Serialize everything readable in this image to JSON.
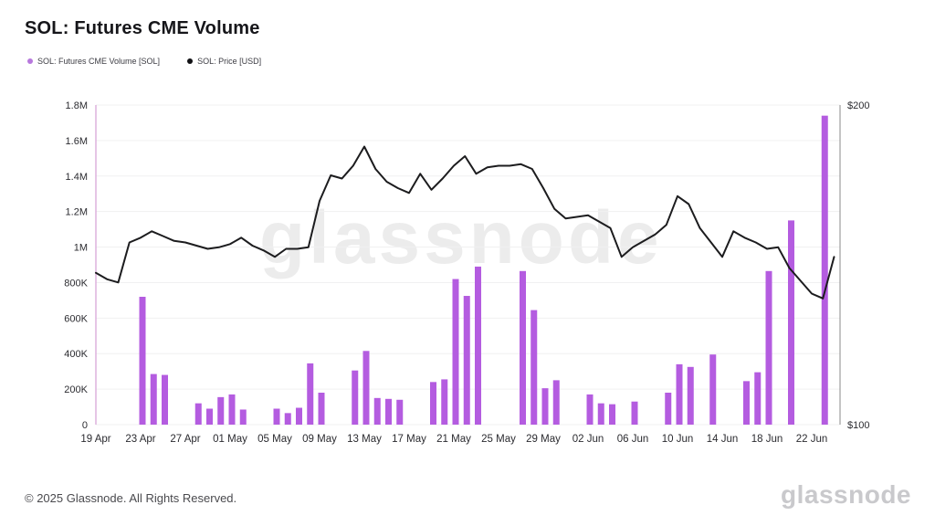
{
  "header": {
    "title": "SOL: Futures CME Volume"
  },
  "legend": {
    "items": [
      {
        "label": "SOL: Futures CME Volume [SOL]",
        "color": "#b778dd"
      },
      {
        "label": "SOL: Price [USD]",
        "color": "#111114"
      }
    ]
  },
  "watermark": "glassnode",
  "footer": {
    "copyright": "© 2025 Glassnode. All Rights Reserved.",
    "logo": "glassnode"
  },
  "colors": {
    "volume_bar": "#b45ce0",
    "price_line": "#1c1c1e",
    "left_axis_line": "#d9a6d9",
    "right_axis_line": "#8a8a8a",
    "gridline": "#f0f0f1",
    "tick_text": "#2b2b30"
  },
  "chart_data": {
    "type": "bar",
    "note": "combo chart: bars = futures volume (left axis), line = price (right axis)",
    "x": [
      "19 Apr",
      "20 Apr",
      "21 Apr",
      "22 Apr",
      "23 Apr",
      "24 Apr",
      "25 Apr",
      "26 Apr",
      "27 Apr",
      "28 Apr",
      "29 Apr",
      "30 Apr",
      "01 May",
      "02 May",
      "03 May",
      "04 May",
      "05 May",
      "06 May",
      "07 May",
      "08 May",
      "09 May",
      "10 May",
      "11 May",
      "12 May",
      "13 May",
      "14 May",
      "15 May",
      "16 May",
      "17 May",
      "18 May",
      "19 May",
      "20 May",
      "21 May",
      "22 May",
      "23 May",
      "24 May",
      "25 May",
      "26 May",
      "27 May",
      "28 May",
      "29 May",
      "30 May",
      "31 May",
      "01 Jun",
      "02 Jun",
      "03 Jun",
      "04 Jun",
      "05 Jun",
      "06 Jun",
      "07 Jun",
      "08 Jun",
      "09 Jun",
      "10 Jun",
      "11 Jun",
      "12 Jun",
      "13 Jun",
      "14 Jun",
      "15 Jun",
      "16 Jun",
      "17 Jun",
      "18 Jun",
      "19 Jun",
      "20 Jun",
      "21 Jun",
      "22 Jun",
      "23 Jun",
      "24 Jun"
    ],
    "series": [
      {
        "name": "SOL: Futures CME Volume [SOL]",
        "type": "bar",
        "axis": "left",
        "values": [
          null,
          null,
          null,
          null,
          720000,
          285000,
          280000,
          null,
          null,
          120000,
          90000,
          155000,
          170000,
          85000,
          null,
          null,
          90000,
          65000,
          95000,
          345000,
          180000,
          null,
          null,
          305000,
          415000,
          150000,
          145000,
          140000,
          null,
          null,
          240000,
          255000,
          820000,
          725000,
          890000,
          null,
          null,
          null,
          865000,
          645000,
          205000,
          250000,
          null,
          null,
          170000,
          120000,
          115000,
          null,
          130000,
          null,
          null,
          180000,
          340000,
          325000,
          null,
          395000,
          null,
          null,
          245000,
          295000,
          865000,
          null,
          1150000,
          null,
          null,
          1740000,
          null
        ]
      },
      {
        "name": "SOL: Price [USD]",
        "type": "line",
        "axis": "right",
        "values": [
          147.5,
          145.5,
          144.5,
          157,
          158.5,
          160.5,
          159,
          157.5,
          157,
          156,
          155,
          155.5,
          156.5,
          158.5,
          156,
          154.5,
          152.5,
          155,
          155,
          155.5,
          170,
          178,
          177,
          181,
          187,
          180,
          176,
          174,
          172.5,
          178.5,
          173.5,
          177,
          181,
          184,
          178.5,
          180.5,
          181,
          181,
          181.5,
          180,
          174,
          167.5,
          164.5,
          165,
          165.5,
          163.5,
          161.5,
          152.5,
          155.5,
          157.5,
          159.5,
          162.5,
          171.5,
          169,
          161.5,
          157,
          152.5,
          160.5,
          158.5,
          157,
          155,
          155.5,
          149,
          145,
          141,
          139.5,
          152.5
        ]
      }
    ],
    "left_axis": {
      "min": 0,
      "max": 1800000,
      "ticks": [
        {
          "value": 0,
          "label": "0"
        },
        {
          "value": 200000,
          "label": "200K"
        },
        {
          "value": 400000,
          "label": "400K"
        },
        {
          "value": 600000,
          "label": "600K"
        },
        {
          "value": 800000,
          "label": "800K"
        },
        {
          "value": 1000000,
          "label": "1M"
        },
        {
          "value": 1200000,
          "label": "1.2M"
        },
        {
          "value": 1400000,
          "label": "1.4M"
        },
        {
          "value": 1600000,
          "label": "1.6M"
        },
        {
          "value": 1800000,
          "label": "1.8M"
        }
      ]
    },
    "right_axis": {
      "min": 100,
      "max": 200,
      "ticks": [
        {
          "value": 100,
          "label": "$100"
        },
        {
          "value": 200,
          "label": "$200"
        }
      ]
    },
    "x_ticks": [
      {
        "index": 0,
        "label": "19 Apr"
      },
      {
        "index": 4,
        "label": "23 Apr"
      },
      {
        "index": 8,
        "label": "27 Apr"
      },
      {
        "index": 12,
        "label": "01 May"
      },
      {
        "index": 16,
        "label": "05 May"
      },
      {
        "index": 20,
        "label": "09 May"
      },
      {
        "index": 24,
        "label": "13 May"
      },
      {
        "index": 28,
        "label": "17 May"
      },
      {
        "index": 32,
        "label": "21 May"
      },
      {
        "index": 36,
        "label": "25 May"
      },
      {
        "index": 40,
        "label": "29 May"
      },
      {
        "index": 44,
        "label": "02 Jun"
      },
      {
        "index": 48,
        "label": "06 Jun"
      },
      {
        "index": 52,
        "label": "10 Jun"
      },
      {
        "index": 56,
        "label": "14 Jun"
      },
      {
        "index": 60,
        "label": "18 Jun"
      },
      {
        "index": 64,
        "label": "22 Jun"
      }
    ],
    "grid": "horizontal",
    "legend_position": "top-left"
  }
}
